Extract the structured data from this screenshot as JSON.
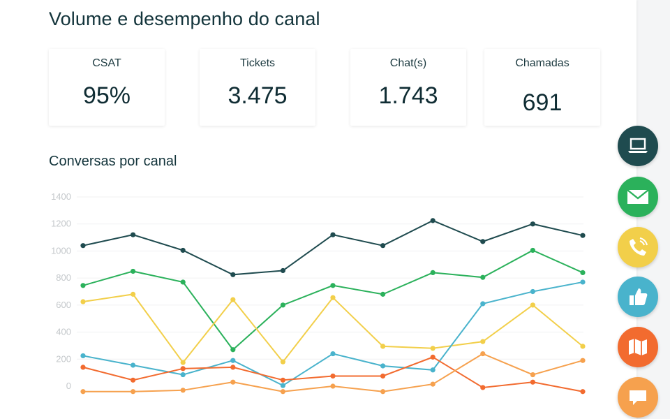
{
  "page": {
    "title": "Volume e desempenho do canal",
    "section_title": "Conversas por canal"
  },
  "stats": [
    {
      "label": "CSAT",
      "value": "95%"
    },
    {
      "label": "Tickets",
      "value": "3.475"
    },
    {
      "label": "Chat(s)",
      "value": "1.743"
    },
    {
      "label": "Chamadas",
      "value": "691"
    }
  ],
  "chart_data": {
    "type": "line",
    "title": "Conversas por canal",
    "xlabel": "",
    "ylabel": "",
    "ylim": [
      0,
      1400
    ],
    "yticks": [
      "0",
      "200",
      "400",
      "600",
      "800",
      "1000",
      "1200",
      "1400"
    ],
    "grid": true,
    "series": [
      {
        "color": "#1f4b4f",
        "values": [
          1040,
          1120,
          1005,
          825,
          855,
          1120,
          1040,
          1225,
          1070,
          1200,
          1115
        ]
      },
      {
        "color": "#2bb15b",
        "values": [
          745,
          850,
          770,
          270,
          600,
          745,
          680,
          840,
          805,
          1005,
          840
        ]
      },
      {
        "color": "#f2cf4a",
        "values": [
          625,
          680,
          175,
          640,
          180,
          655,
          295,
          280,
          330,
          600,
          295
        ]
      },
      {
        "color": "#49b3cc",
        "values": [
          225,
          155,
          85,
          190,
          5,
          240,
          150,
          120,
          610,
          700,
          770
        ]
      },
      {
        "color": "#f26b2f",
        "values": [
          140,
          45,
          130,
          140,
          45,
          75,
          75,
          215,
          -10,
          30,
          -40
        ]
      },
      {
        "color": "#f6a14e",
        "values": [
          -40,
          -40,
          -30,
          30,
          -40,
          0,
          -40,
          15,
          240,
          85,
          190
        ]
      }
    ]
  },
  "fabs": [
    {
      "name": "laptop-icon",
      "color": "#1f4b4f"
    },
    {
      "name": "mail-icon",
      "color": "#2bb15b"
    },
    {
      "name": "phone-icon",
      "color": "#f2cf4a"
    },
    {
      "name": "thumbs-up-icon",
      "color": "#49b3cc"
    },
    {
      "name": "map-icon",
      "color": "#f26b2f"
    },
    {
      "name": "chat-bubble-icon",
      "color": "#f6a14e"
    }
  ]
}
